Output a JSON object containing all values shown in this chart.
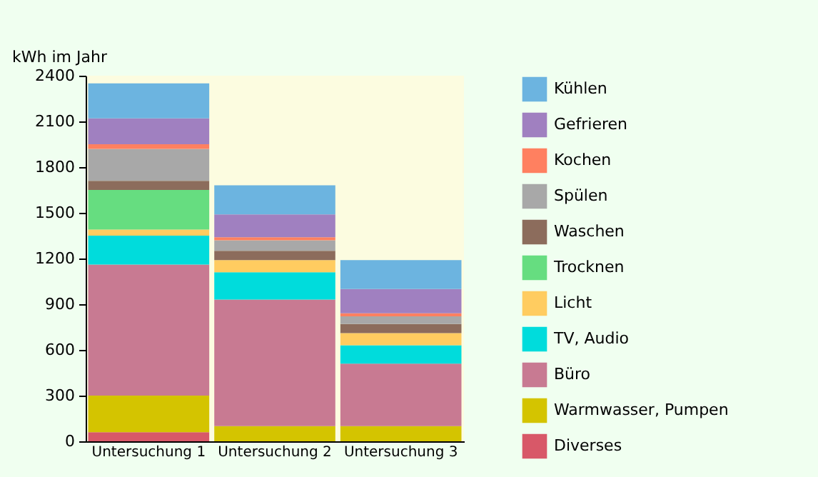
{
  "chart_data": {
    "type": "bar",
    "stacked": true,
    "ylabel": "kWh im Jahr",
    "categories": [
      "Untersuchung 1",
      "Untersuchung 2",
      "Untersuchung 3"
    ],
    "ylim": [
      0,
      2400
    ],
    "yticks": [
      0,
      300,
      600,
      900,
      1200,
      1500,
      1800,
      2100,
      2400
    ],
    "grid": false,
    "legend": "right",
    "series": [
      {
        "name": "Diverses",
        "color": "#d85868",
        "values": [
          60,
          0,
          0
        ]
      },
      {
        "name": "Warmwasser, Pumpen",
        "color": "#d4c400",
        "values": [
          240,
          100,
          100
        ]
      },
      {
        "name": "Büro",
        "color": "#c87a92",
        "values": [
          860,
          830,
          410
        ]
      },
      {
        "name": "TV, Audio",
        "color": "#00dcdc",
        "values": [
          190,
          180,
          120
        ]
      },
      {
        "name": "Licht",
        "color": "#ffcc60",
        "values": [
          40,
          80,
          80
        ]
      },
      {
        "name": "Trocknen",
        "color": "#66dd80",
        "values": [
          260,
          0,
          0
        ]
      },
      {
        "name": "Waschen",
        "color": "#8c6c5c",
        "values": [
          60,
          60,
          60
        ]
      },
      {
        "name": "Spülen",
        "color": "#a8a8a8",
        "values": [
          210,
          70,
          50
        ]
      },
      {
        "name": "Kochen",
        "color": "#ff8060",
        "values": [
          30,
          20,
          20
        ]
      },
      {
        "name": "Gefrieren",
        "color": "#a080c0",
        "values": [
          170,
          150,
          160
        ]
      },
      {
        "name": "Kühlen",
        "color": "#6cb4e0",
        "values": [
          230,
          190,
          190
        ]
      }
    ]
  }
}
